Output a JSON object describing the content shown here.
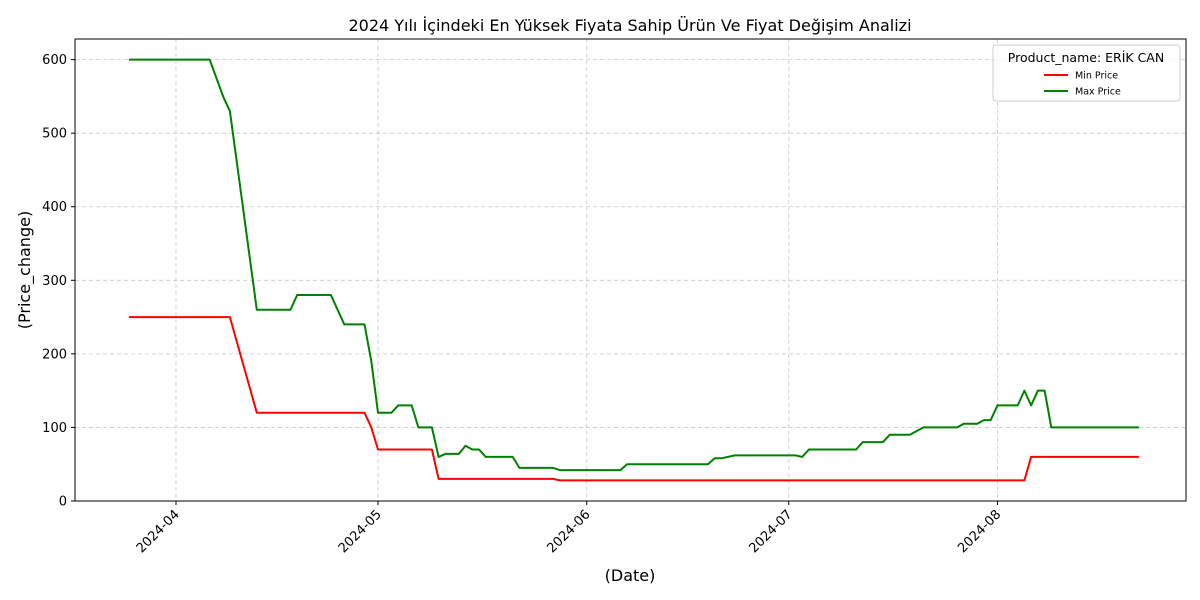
{
  "chart_data": {
    "type": "line",
    "title": "2024 Yılı İçindeki En Yüksek Fiyata Sahip Ürün Ve Fiyat Değişim Analizi",
    "xlabel": "(Date)",
    "ylabel": "(Price_change)",
    "x_type": "date",
    "xlim": [
      "2024-03-17",
      "2024-08-29"
    ],
    "ylim": [
      0,
      628
    ],
    "x_ticks": [
      {
        "date": "2024-04-01",
        "label": "2024-04"
      },
      {
        "date": "2024-05-01",
        "label": "2024-05"
      },
      {
        "date": "2024-06-01",
        "label": "2024-06"
      },
      {
        "date": "2024-07-01",
        "label": "2024-07"
      },
      {
        "date": "2024-08-01",
        "label": "2024-08"
      }
    ],
    "y_ticks": [
      0,
      100,
      200,
      300,
      400,
      500,
      600
    ],
    "grid": true,
    "legend": {
      "title": "Product_name: ERİK  CAN",
      "position": "top-right"
    },
    "series": [
      {
        "name": "Min Price",
        "color": "#ff0000",
        "points": [
          [
            "2024-03-25",
            250
          ],
          [
            "2024-04-09",
            250
          ],
          [
            "2024-04-13",
            120
          ],
          [
            "2024-04-29",
            120
          ],
          [
            "2024-04-30",
            100
          ],
          [
            "2024-05-01",
            70
          ],
          [
            "2024-05-09",
            70
          ],
          [
            "2024-05-10",
            30
          ],
          [
            "2024-05-27",
            30
          ],
          [
            "2024-05-28",
            28
          ],
          [
            "2024-08-05",
            28
          ],
          [
            "2024-08-06",
            60
          ],
          [
            "2024-08-22",
            60
          ]
        ]
      },
      {
        "name": "Max Price",
        "color": "#008000",
        "points": [
          [
            "2024-03-25",
            600
          ],
          [
            "2024-04-06",
            600
          ],
          [
            "2024-04-07",
            575
          ],
          [
            "2024-04-08",
            550
          ],
          [
            "2024-04-09",
            530
          ],
          [
            "2024-04-13",
            260
          ],
          [
            "2024-04-18",
            260
          ],
          [
            "2024-04-19",
            280
          ],
          [
            "2024-04-24",
            280
          ],
          [
            "2024-04-26",
            240
          ],
          [
            "2024-04-29",
            240
          ],
          [
            "2024-04-30",
            190
          ],
          [
            "2024-05-01",
            120
          ],
          [
            "2024-05-03",
            120
          ],
          [
            "2024-05-04",
            130
          ],
          [
            "2024-05-06",
            130
          ],
          [
            "2024-05-07",
            100
          ],
          [
            "2024-05-09",
            100
          ],
          [
            "2024-05-10",
            60
          ],
          [
            "2024-05-11",
            64
          ],
          [
            "2024-05-13",
            64
          ],
          [
            "2024-05-14",
            75
          ],
          [
            "2024-05-15",
            70
          ],
          [
            "2024-05-16",
            70
          ],
          [
            "2024-05-17",
            60
          ],
          [
            "2024-05-21",
            60
          ],
          [
            "2024-05-22",
            45
          ],
          [
            "2024-05-27",
            45
          ],
          [
            "2024-05-28",
            42
          ],
          [
            "2024-06-06",
            42
          ],
          [
            "2024-06-07",
            50
          ],
          [
            "2024-06-19",
            50
          ],
          [
            "2024-06-20",
            58
          ],
          [
            "2024-06-21",
            58
          ],
          [
            "2024-06-23",
            62
          ],
          [
            "2024-07-02",
            62
          ],
          [
            "2024-07-03",
            60
          ],
          [
            "2024-07-04",
            70
          ],
          [
            "2024-07-11",
            70
          ],
          [
            "2024-07-12",
            80
          ],
          [
            "2024-07-15",
            80
          ],
          [
            "2024-07-16",
            90
          ],
          [
            "2024-07-19",
            90
          ],
          [
            "2024-07-21",
            100
          ],
          [
            "2024-07-26",
            100
          ],
          [
            "2024-07-27",
            105
          ],
          [
            "2024-07-29",
            105
          ],
          [
            "2024-07-30",
            110
          ],
          [
            "2024-07-31",
            110
          ],
          [
            "2024-08-01",
            130
          ],
          [
            "2024-08-04",
            130
          ],
          [
            "2024-08-05",
            150
          ],
          [
            "2024-08-06",
            130
          ],
          [
            "2024-08-07",
            150
          ],
          [
            "2024-08-08",
            150
          ],
          [
            "2024-08-09",
            100
          ],
          [
            "2024-08-22",
            100
          ]
        ]
      }
    ]
  }
}
